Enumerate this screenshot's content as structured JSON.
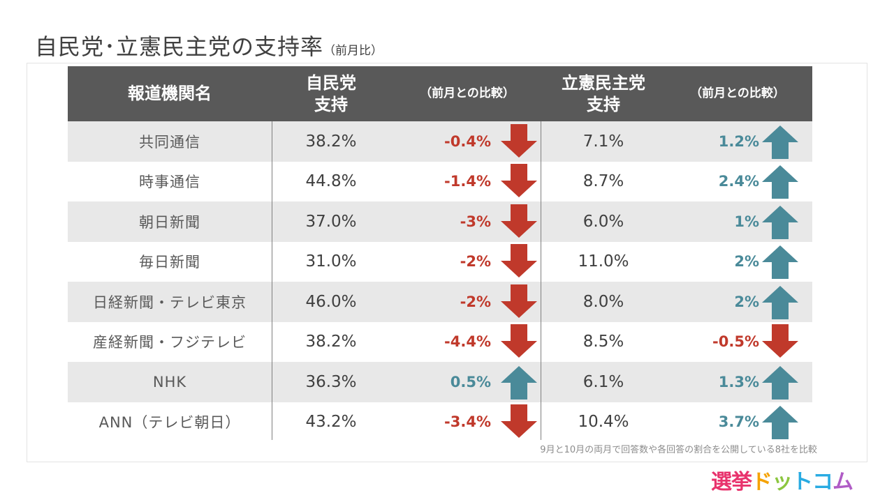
{
  "title": {
    "main": "自民党･立憲民主党の支持率",
    "sub": "（前月比）"
  },
  "header": {
    "col_name": "報道機関名",
    "col_ldp_line1": "自民党",
    "col_ldp_line2": "支持",
    "col_ldp_change": "（前月との比較）",
    "col_cdp_line1": "立憲民主党",
    "col_cdp_line2": "支持",
    "col_cdp_change": "（前月との比較）"
  },
  "colors": {
    "up": "#4a8a99",
    "down": "#c0392b",
    "header_bg": "#595959",
    "row_shade": "#e8e8e8"
  },
  "icons": {
    "up": "up-arrow-icon",
    "down": "down-arrow-icon"
  },
  "rows": [
    {
      "name": "共同通信",
      "ldp": "38.2%",
      "ldp_change": "-0.4%",
      "ldp_dir": "down",
      "cdp": "7.1%",
      "cdp_change": "1.2%",
      "cdp_dir": "up"
    },
    {
      "name": "時事通信",
      "ldp": "44.8%",
      "ldp_change": "-1.4%",
      "ldp_dir": "down",
      "cdp": "8.7%",
      "cdp_change": "2.4%",
      "cdp_dir": "up"
    },
    {
      "name": "朝日新聞",
      "ldp": "37.0%",
      "ldp_change": "-3%",
      "ldp_dir": "down",
      "cdp": "6.0%",
      "cdp_change": "1%",
      "cdp_dir": "up"
    },
    {
      "name": "毎日新聞",
      "ldp": "31.0%",
      "ldp_change": "-2%",
      "ldp_dir": "down",
      "cdp": "11.0%",
      "cdp_change": "2%",
      "cdp_dir": "up"
    },
    {
      "name": "日経新聞・テレビ東京",
      "ldp": "46.0%",
      "ldp_change": "-2%",
      "ldp_dir": "down",
      "cdp": "8.0%",
      "cdp_change": "2%",
      "cdp_dir": "up"
    },
    {
      "name": "産経新聞・フジテレビ",
      "ldp": "38.2%",
      "ldp_change": "-4.4%",
      "ldp_dir": "down",
      "cdp": "8.5%",
      "cdp_change": "-0.5%",
      "cdp_dir": "down"
    },
    {
      "name": "NHK",
      "ldp": "36.3%",
      "ldp_change": "0.5%",
      "ldp_dir": "up",
      "cdp": "6.1%",
      "cdp_change": "1.3%",
      "cdp_dir": "up"
    },
    {
      "name": "ANN（テレビ朝日）",
      "ldp": "43.2%",
      "ldp_change": "-3.4%",
      "ldp_dir": "down",
      "cdp": "10.4%",
      "cdp_change": "3.7%",
      "cdp_dir": "up"
    }
  ],
  "note": "9月と10月の両月で回答数や各回答の割合を公開している8社を比較",
  "logo": {
    "chars": [
      "選",
      "挙",
      "ド",
      "ッ",
      "ト",
      "コ",
      "ム"
    ],
    "colors": [
      "#e8336d",
      "#e8336d",
      "#f5a200",
      "#8cc63f",
      "#29abe2",
      "#29abe2",
      "#b05cc6"
    ]
  }
}
